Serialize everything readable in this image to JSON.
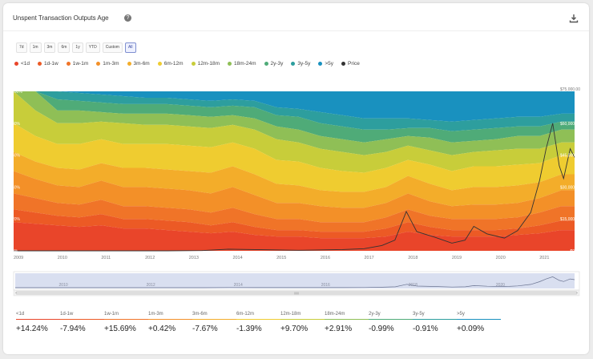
{
  "header": {
    "title": "Unspent Transaction Outputs Age",
    "help_icon": "question-icon",
    "download_icon": "download-icon"
  },
  "ranges": [
    "7d",
    "1m",
    "3m",
    "6m",
    "1y",
    "YTD",
    "Custom",
    "All"
  ],
  "active_range": "All",
  "colors": [
    "#e9452a",
    "#ec5a25",
    "#f07428",
    "#f39028",
    "#f3ad2a",
    "#efcc30",
    "#c8cd3a",
    "#8fbf56",
    "#4fab78",
    "#2d9e9e",
    "#1991bf"
  ],
  "price_color": "#333333",
  "legend": [
    "<1d",
    "1d-1w",
    "1w-1m",
    "1m-3m",
    "3m-6m",
    "6m-12m",
    "12m-18m",
    "18m-24m",
    "2y-3y",
    "3y-5y",
    ">5y",
    "Price"
  ],
  "stats": [
    {
      "label": "<1d",
      "value": "+14.24%"
    },
    {
      "label": "1d-1w",
      "value": "-7.94%"
    },
    {
      "label": "1w-1m",
      "value": "+15.69%"
    },
    {
      "label": "1m-3m",
      "value": "+0.42%"
    },
    {
      "label": "3m-6m",
      "value": "-7.67%"
    },
    {
      "label": "6m-12m",
      "value": "-1.39%"
    },
    {
      "label": "12m-18m",
      "value": "+9.70%"
    },
    {
      "label": "18m-24m",
      "value": "+2.91%"
    },
    {
      "label": "2y-3y",
      "value": "-0.99%"
    },
    {
      "label": "3y-5y",
      "value": "-0.91%"
    },
    {
      "label": ">5y",
      "value": "+0.09%"
    }
  ],
  "chart_data": {
    "type": "area",
    "title": "Unspent Transaction Outputs Age",
    "x_ticks": [
      "2009",
      "2010",
      "2011",
      "2012",
      "2013",
      "2014",
      "2015",
      "2016",
      "2017",
      "2018",
      "2019",
      "2020",
      "2021"
    ],
    "nav_ticks": [
      "2010",
      "2012",
      "2014",
      "2016",
      "2018",
      "2020"
    ],
    "y_left_ticks": [
      "100%",
      "80%",
      "60%",
      "40%",
      "20%",
      "0%"
    ],
    "y_right_ticks": [
      "$75,000.00",
      "$60,000.00",
      "$45,000.00",
      "$30,000.00",
      "$15,000.00",
      "$0.00"
    ],
    "ylim": [
      0,
      100
    ],
    "y2lim": [
      0,
      75000
    ],
    "x": [
      2009.0,
      2009.5,
      2010.0,
      2010.5,
      2011.0,
      2011.5,
      2012.0,
      2012.5,
      2013.0,
      2013.5,
      2014.0,
      2014.5,
      2015.0,
      2015.5,
      2016.0,
      2016.5,
      2017.0,
      2017.5,
      2018.0,
      2018.5,
      2019.0,
      2019.5,
      2020.0,
      2020.5,
      2021.0,
      2021.5,
      2021.8
    ],
    "boundaries_percent": [
      [
        18,
        17,
        16,
        15,
        16,
        14,
        14,
        13,
        12,
        11,
        12,
        10,
        9,
        9,
        8,
        8,
        8,
        9,
        12,
        10,
        9,
        9,
        9,
        10,
        11,
        13,
        13
      ],
      [
        26,
        24,
        22,
        21,
        23,
        20,
        20,
        19,
        18,
        16,
        18,
        15,
        13,
        13,
        12,
        12,
        12,
        14,
        18,
        15,
        13,
        13,
        13,
        14,
        16,
        19,
        19
      ],
      [
        36,
        33,
        30,
        29,
        32,
        28,
        28,
        27,
        26,
        24,
        27,
        23,
        20,
        20,
        18,
        18,
        18,
        21,
        26,
        22,
        20,
        20,
        20,
        21,
        24,
        28,
        28
      ],
      [
        50,
        45,
        41,
        40,
        44,
        40,
        40,
        39,
        38,
        36,
        40,
        35,
        30,
        30,
        28,
        27,
        27,
        30,
        36,
        31,
        28,
        29,
        29,
        30,
        33,
        38,
        38
      ],
      [
        62,
        56,
        52,
        51,
        55,
        52,
        52,
        51,
        50,
        49,
        53,
        48,
        42,
        41,
        38,
        37,
        37,
        40,
        47,
        42,
        38,
        40,
        40,
        41,
        43,
        48,
        48
      ],
      [
        80,
        72,
        67,
        67,
        70,
        67,
        67,
        67,
        66,
        65,
        68,
        64,
        57,
        56,
        52,
        50,
        49,
        52,
        57,
        54,
        50,
        53,
        53,
        54,
        55,
        60,
        60
      ],
      [
        100,
        88,
        80,
        80,
        81,
        80,
        79,
        79,
        78,
        77,
        79,
        76,
        70,
        68,
        64,
        62,
        60,
        62,
        66,
        63,
        60,
        62,
        63,
        64,
        64,
        68,
        68
      ],
      [
        100,
        100,
        88,
        88,
        87,
        86,
        86,
        86,
        85,
        84,
        85,
        83,
        78,
        76,
        72,
        70,
        68,
        70,
        72,
        71,
        68,
        69,
        70,
        72,
        72,
        76,
        76
      ],
      [
        100,
        100,
        95,
        94,
        93,
        92,
        92,
        92,
        91,
        90,
        91,
        90,
        85,
        84,
        80,
        78,
        76,
        76,
        77,
        77,
        75,
        76,
        77,
        78,
        78,
        81,
        81
      ],
      [
        100,
        100,
        100,
        99,
        98,
        97,
        96,
        96,
        95,
        94,
        95,
        94,
        90,
        89,
        87,
        85,
        83,
        83,
        83,
        82,
        81,
        82,
        83,
        84,
        84,
        86,
        86
      ],
      [
        100,
        100,
        100,
        100,
        100,
        100,
        100,
        100,
        100,
        100,
        100,
        100,
        100,
        100,
        100,
        100,
        100,
        100,
        100,
        100,
        100,
        100,
        100,
        100,
        100,
        100,
        100
      ]
    ],
    "price": {
      "x": [
        2009.0,
        2010.5,
        2011.5,
        2012.5,
        2013.3,
        2013.9,
        2014.5,
        2015.5,
        2016.5,
        2017.0,
        2017.4,
        2017.7,
        2017.96,
        2018.2,
        2018.6,
        2019.0,
        2019.3,
        2019.5,
        2019.8,
        2020.2,
        2020.5,
        2020.8,
        2021.0,
        2021.15,
        2021.3,
        2021.45,
        2021.55,
        2021.7,
        2021.8
      ],
      "y": [
        0,
        0,
        10,
        10,
        100,
        800,
        600,
        250,
        600,
        1000,
        2500,
        5000,
        18500,
        9000,
        6500,
        3600,
        5000,
        11500,
        8000,
        6000,
        9500,
        18000,
        33000,
        48000,
        60000,
        40000,
        34000,
        48000,
        44000
      ]
    }
  }
}
